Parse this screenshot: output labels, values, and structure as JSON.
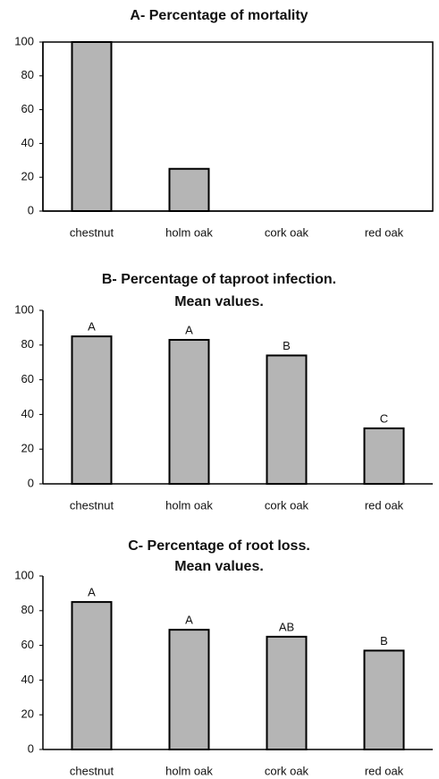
{
  "chart_data": [
    {
      "type": "bar",
      "title": "A- Percentage of mortality",
      "categories": [
        "chestnut",
        "holm oak",
        "cork oak",
        "red oak"
      ],
      "values": [
        100,
        25,
        0,
        0
      ],
      "color": "#b5b5b5",
      "ylim": [
        0,
        100
      ],
      "yticks": [
        0,
        20,
        40,
        60,
        80,
        100
      ],
      "frame": true
    },
    {
      "type": "bar",
      "title": "B- Percentage of taproot infection.",
      "subtitle": "Mean values.",
      "categories": [
        "chestnut",
        "holm oak",
        "cork oak",
        "red oak"
      ],
      "values": [
        85,
        83,
        74,
        32
      ],
      "value_labels": [
        "A",
        "A",
        "B",
        "C"
      ],
      "color": "#b5b5b5",
      "ylim": [
        0,
        100
      ],
      "yticks": [
        0,
        20,
        40,
        60,
        80,
        100
      ],
      "frame": false
    },
    {
      "type": "bar",
      "title": "C- Percentage of root loss.",
      "subtitle": "Mean values.",
      "categories": [
        "chestnut",
        "holm oak",
        "cork oak",
        "red oak"
      ],
      "values": [
        85,
        69,
        65,
        57
      ],
      "value_labels": [
        "A",
        "A",
        "AB",
        "B"
      ],
      "color": "#b5b5b5",
      "ylim": [
        0,
        100
      ],
      "yticks": [
        0,
        20,
        40,
        60,
        80,
        100
      ],
      "frame": false
    }
  ]
}
